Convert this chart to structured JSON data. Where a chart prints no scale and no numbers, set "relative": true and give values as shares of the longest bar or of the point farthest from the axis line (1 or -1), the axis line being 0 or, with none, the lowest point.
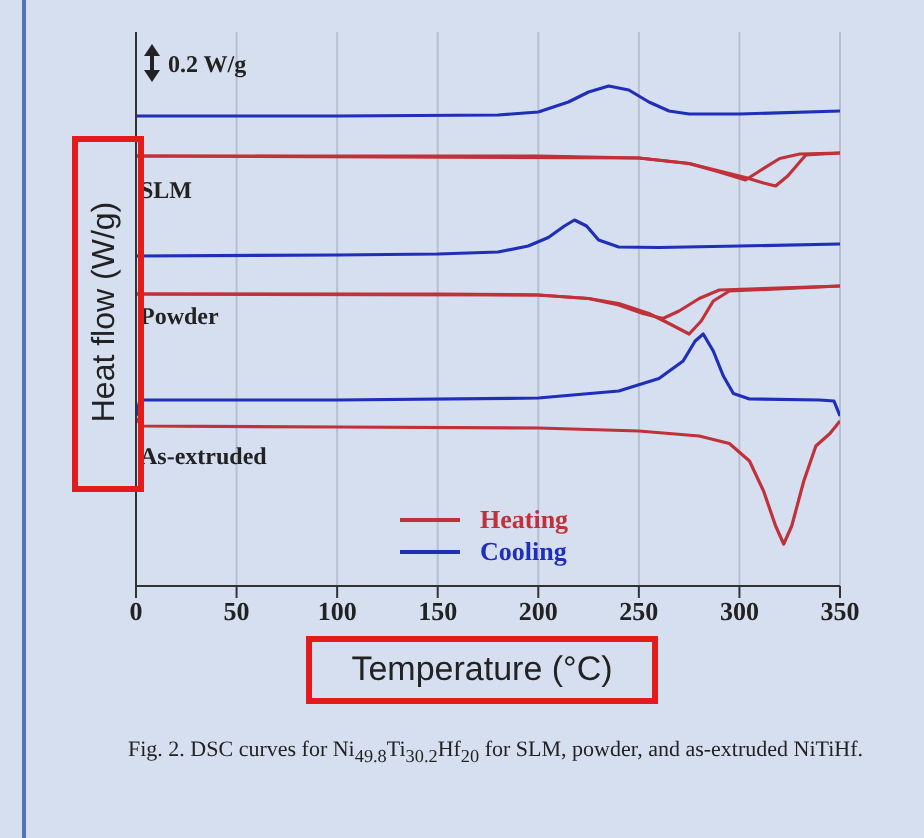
{
  "chart_data": {
    "type": "line",
    "xlabel": "Temperature (°C)",
    "ylabel": "Heat flow (W/g)",
    "relative": true,
    "xlim": [
      0,
      350
    ],
    "xticks": [
      0,
      50,
      100,
      150,
      200,
      250,
      300,
      350
    ],
    "tick_labels": "x",
    "grid": "x",
    "legend": "bottom",
    "annotations": [
      "0.2 W/g",
      "SLM",
      "Powder",
      "As-extruded",
      "Fig. 2. DSC curves for Ni$_{49.8}$Ti$_{30.2}$Hf$_{20}$ for SLM, powder, and as-extruded NiTiHf."
    ],
    "series": [
      {
        "name": "Heating",
        "color": "#c0313a",
        "x": [
          0,
          200,
          250,
          275,
          290,
          303,
          310,
          320,
          330,
          350
        ],
        "values": [
          0.86,
          0.86,
          0.856,
          0.845,
          0.828,
          0.812,
          0.83,
          0.855,
          0.864,
          0.866
        ]
      },
      {
        "name": "Cooling",
        "color": "#1f2fb8",
        "x": [
          0,
          100,
          180,
          200,
          215,
          225,
          235,
          245,
          255,
          265,
          275,
          300,
          350
        ],
        "values": [
          0.94,
          0.94,
          0.942,
          0.948,
          0.968,
          0.988,
          1,
          0.992,
          0.968,
          0.95,
          0.944,
          0.944,
          0.95
        ]
      },
      {
        "color": "#c0313a",
        "x": [
          0,
          250,
          275,
          290,
          303,
          312,
          318,
          324,
          333,
          350
        ],
        "values": [
          0.86,
          0.856,
          0.845,
          0.83,
          0.817,
          0.806,
          0.8,
          0.82,
          0.862,
          0.866
        ]
      },
      {
        "color": "#1f2fb8",
        "x": [
          0,
          100,
          150,
          180,
          195,
          205,
          213,
          218,
          224,
          230,
          240,
          260,
          300,
          350
        ],
        "values": [
          0.66,
          0.662,
          0.664,
          0.668,
          0.68,
          0.697,
          0.72,
          0.732,
          0.72,
          0.692,
          0.678,
          0.677,
          0.68,
          0.684
        ]
      },
      {
        "color": "#c0313a",
        "x": [
          0,
          150,
          200,
          225,
          240,
          252,
          262,
          270,
          280,
          290,
          350
        ],
        "values": [
          0.584,
          0.584,
          0.582,
          0.575,
          0.562,
          0.545,
          0.535,
          0.55,
          0.575,
          0.592,
          0.6
        ]
      },
      {
        "color": "#c0313a",
        "x": [
          0,
          200,
          225,
          240,
          255,
          265,
          275,
          281,
          287,
          295,
          350
        ],
        "values": [
          0.584,
          0.582,
          0.575,
          0.565,
          0.545,
          0.525,
          0.504,
          0.53,
          0.57,
          0.59,
          0.6
        ]
      },
      {
        "color": "#1f2fb8",
        "x": [
          0,
          2,
          100,
          200,
          240,
          260,
          272,
          278,
          282,
          287,
          292,
          297,
          305,
          340,
          347,
          350
        ],
        "values": [
          0.34,
          0.372,
          0.372,
          0.376,
          0.39,
          0.415,
          0.45,
          0.49,
          0.504,
          0.47,
          0.42,
          0.385,
          0.374,
          0.372,
          0.37,
          0.34
        ]
      },
      {
        "color": "#c0313a",
        "x": [
          0,
          3,
          100,
          200,
          250,
          280,
          295,
          305,
          312,
          318,
          322,
          326,
          332,
          338,
          345,
          350
        ],
        "values": [
          0.335,
          0.32,
          0.318,
          0.316,
          0.31,
          0.3,
          0.285,
          0.25,
          0.19,
          0.12,
          0.084,
          0.12,
          0.21,
          0.28,
          0.305,
          0.33
        ]
      }
    ]
  }
}
